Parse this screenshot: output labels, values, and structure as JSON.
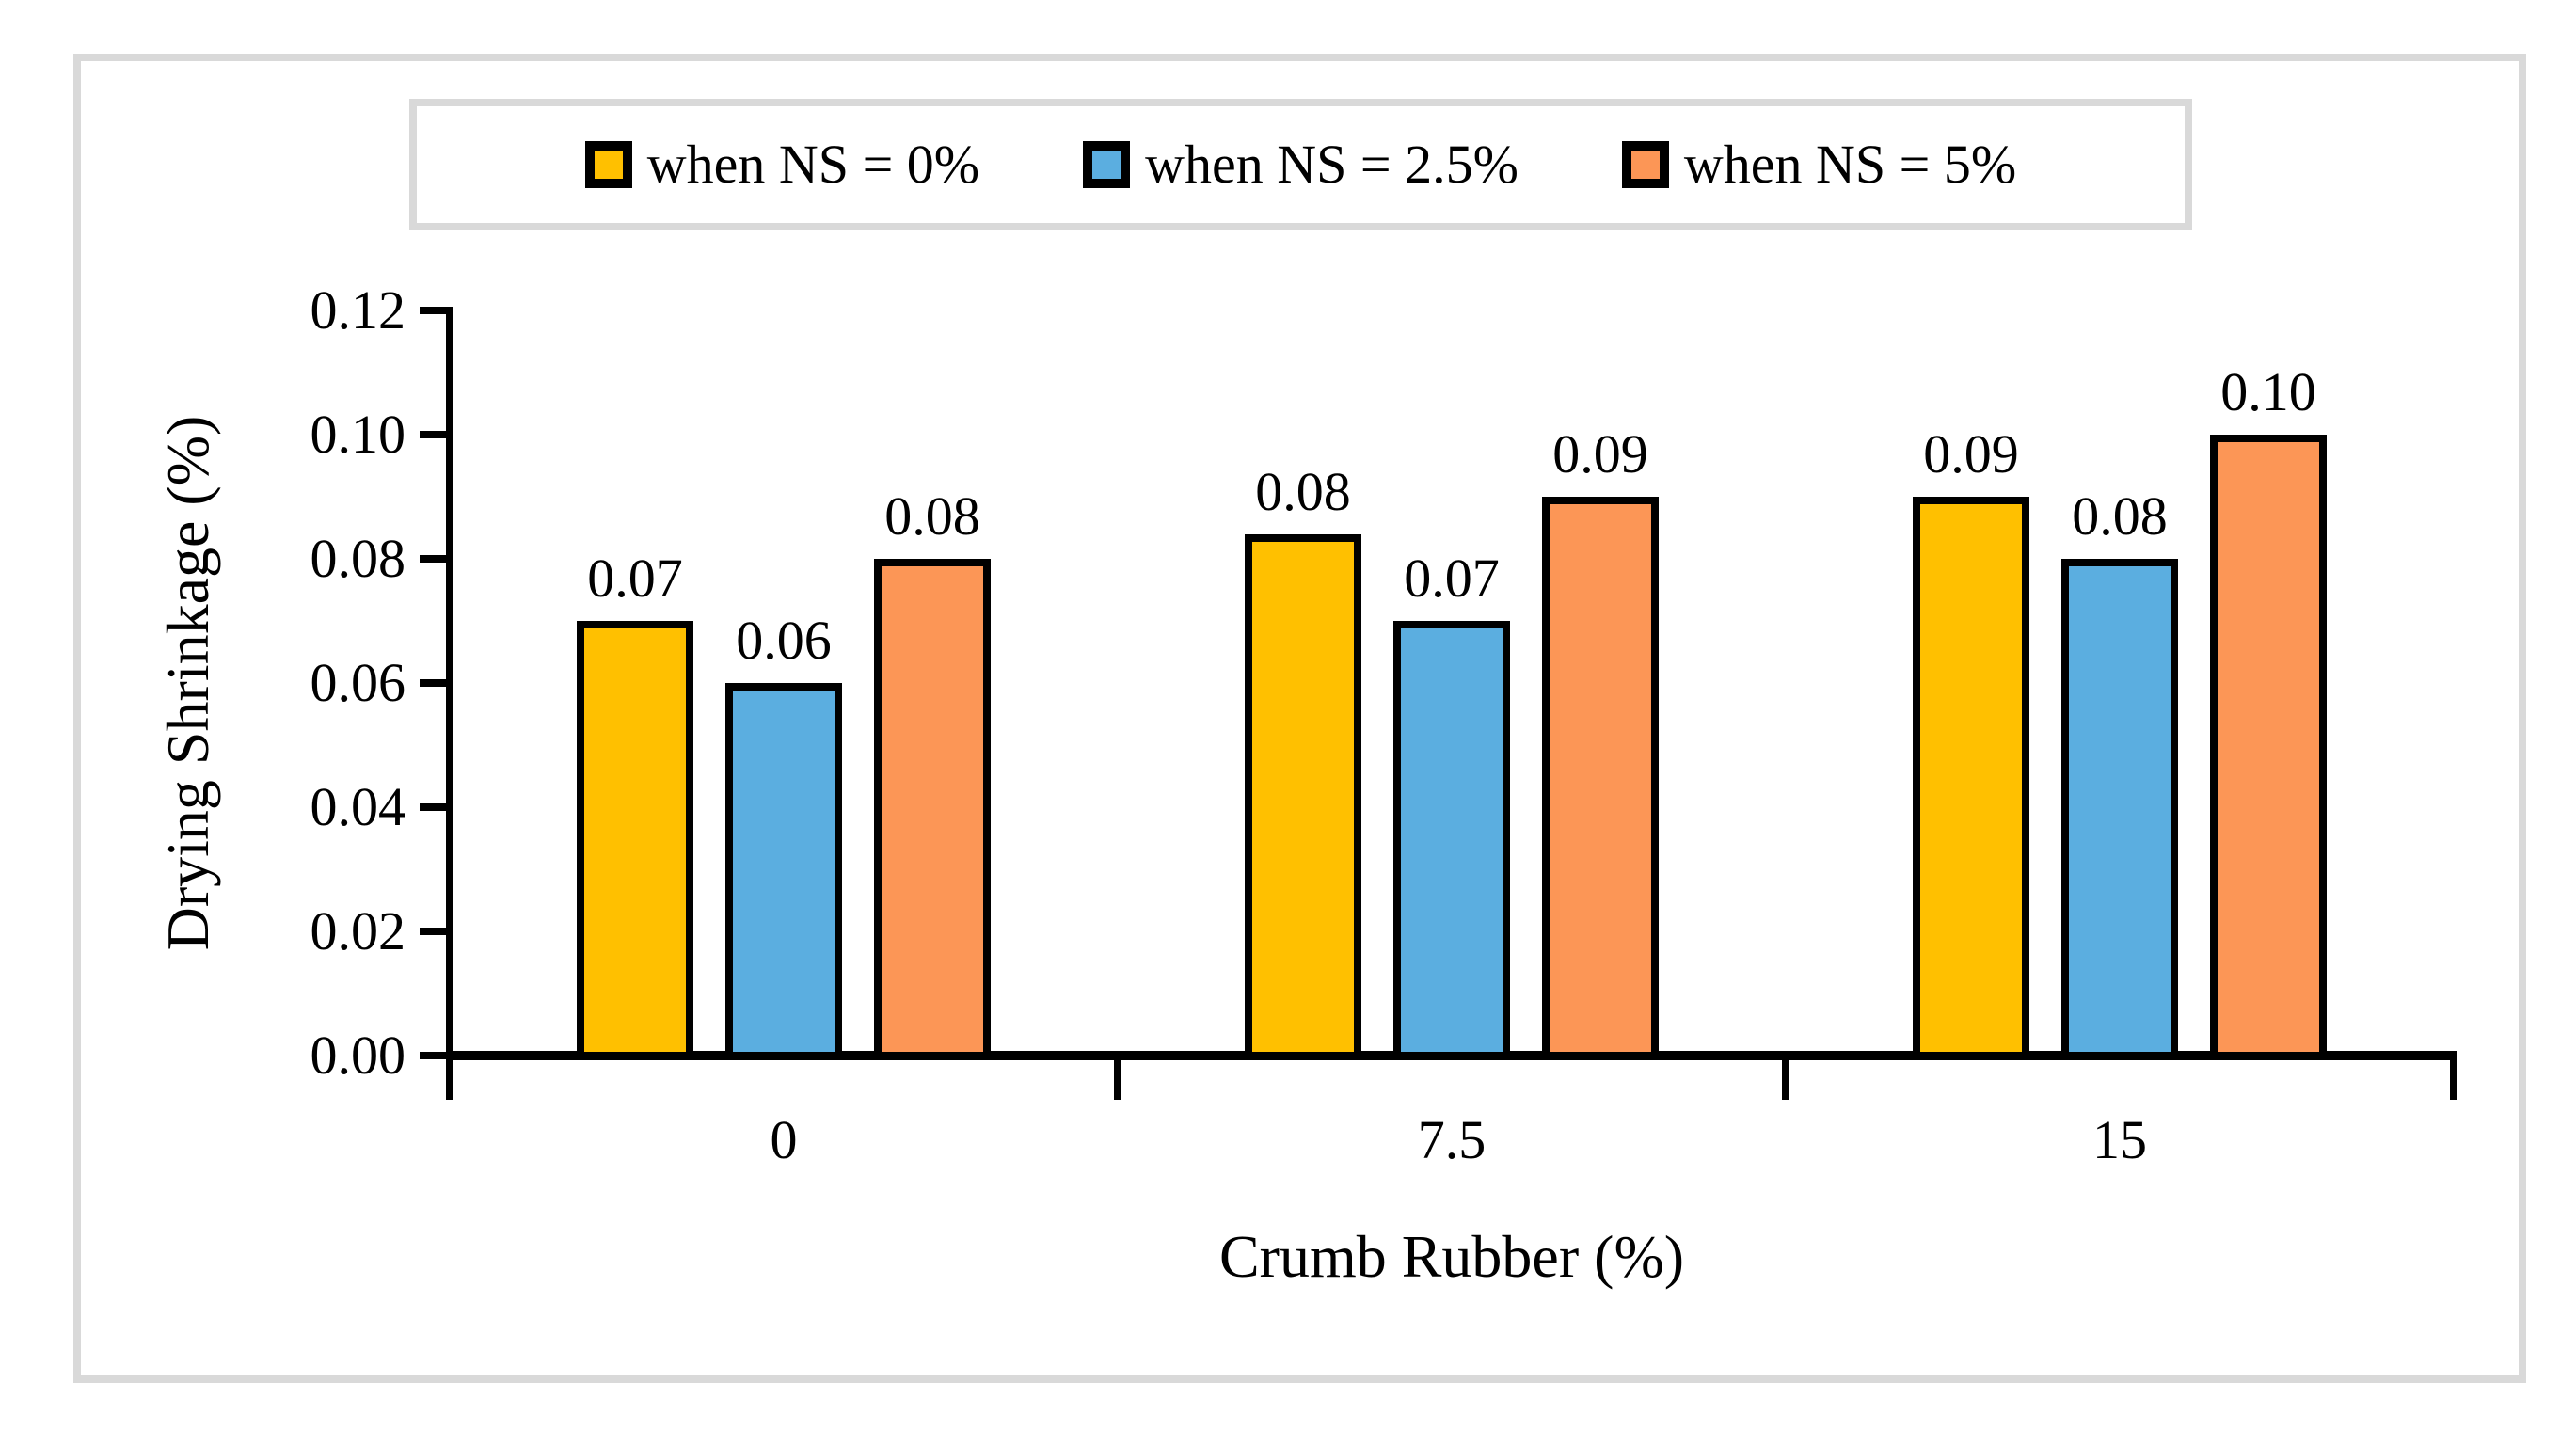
{
  "figure": {
    "background_color": "#ffffff",
    "frame_color": "#d9d9d9"
  },
  "legend": {
    "position": "top",
    "items": [
      {
        "label": "when NS = 0%",
        "color": "#FFC000"
      },
      {
        "label": "when NS = 2.5%",
        "color": "#5BAEE0"
      },
      {
        "label": "when NS = 5%",
        "color": "#FC9656"
      }
    ]
  },
  "chart_data": {
    "type": "bar",
    "title": "",
    "xlabel": "Crumb Rubber (%)",
    "ylabel": "Drying Shrinkage (%)",
    "categories": [
      "0",
      "7.5",
      "15"
    ],
    "series": [
      {
        "name": "when NS = 0%",
        "color": "#FFC000",
        "values": [
          0.07,
          0.08,
          0.09
        ],
        "visual_values": [
          0.07,
          0.084,
          0.09
        ],
        "labels": [
          "0.07",
          "0.08",
          "0.09"
        ]
      },
      {
        "name": "when NS = 2.5%",
        "color": "#5BAEE0",
        "values": [
          0.06,
          0.07,
          0.08
        ],
        "labels": [
          "0.06",
          "0.07",
          "0.08"
        ]
      },
      {
        "name": "when NS = 5%",
        "color": "#FC9656",
        "values": [
          0.08,
          0.09,
          0.1
        ],
        "labels": [
          "0.08",
          "0.09",
          "0.10"
        ]
      }
    ],
    "ylim": [
      0.0,
      0.12
    ],
    "ytick_labels": [
      "0.00",
      "0.02",
      "0.04",
      "0.06",
      "0.08",
      "0.10",
      "0.12"
    ],
    "grid": false,
    "bar_outline_color": "#000000",
    "legend_position": "top"
  }
}
